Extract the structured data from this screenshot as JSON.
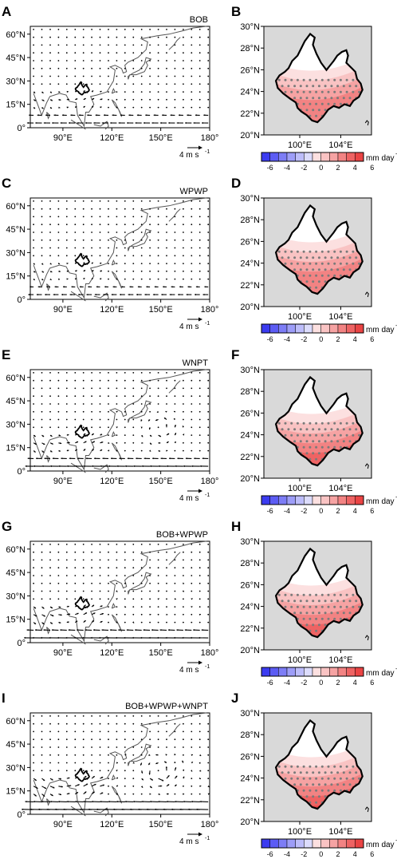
{
  "figure": {
    "rows": [
      {
        "left_label": "A",
        "right_label": "B",
        "experiment": "BOB",
        "intensity": 0.55,
        "vortex": false
      },
      {
        "left_label": "C",
        "right_label": "D",
        "experiment": "WPWP",
        "intensity": 0.45,
        "vortex": false
      },
      {
        "left_label": "E",
        "right_label": "F",
        "experiment": "WNPT",
        "intensity": 0.7,
        "vortex": true
      },
      {
        "left_label": "G",
        "right_label": "H",
        "experiment": "BOB+WPWP",
        "intensity": 0.8,
        "vortex": false
      },
      {
        "left_label": "I",
        "right_label": "J",
        "experiment": "BOB+WPWP+WNPT",
        "intensity": 1.0,
        "vortex": true
      }
    ],
    "wind_map": {
      "x_ticks": [
        "90°E",
        "120°E",
        "150°E",
        "180°"
      ],
      "y_ticks": [
        "60°N",
        "45°N",
        "30°N",
        "15°N",
        "0°"
      ],
      "ref_vector_label": "4 m s",
      "ref_vector_exp": "-1"
    },
    "precip_map": {
      "x_ticks": [
        "100°E",
        "104°E"
      ],
      "y_ticks": [
        "30°N",
        "28°N",
        "26°N",
        "24°N",
        "22°N",
        "20°N"
      ],
      "colorbar_ticks": [
        "-6",
        "-4",
        "-2",
        "0",
        "2",
        "4",
        "6"
      ],
      "colorbar_unit": "mm day",
      "colorbar_unit_exp": "-1",
      "colors": {
        "neg": [
          "#3b3bf0",
          "#5c5cf4",
          "#7d7df6",
          "#9d9df8",
          "#bdbdfa",
          "#dcdcfc"
        ],
        "pos": [
          "#fce0e0",
          "#f9c3c3",
          "#f6a3a3",
          "#f28383",
          "#ee6363",
          "#ea4444"
        ],
        "background": "#d9d9d9",
        "stipple": "#7a7a7a"
      }
    }
  }
}
